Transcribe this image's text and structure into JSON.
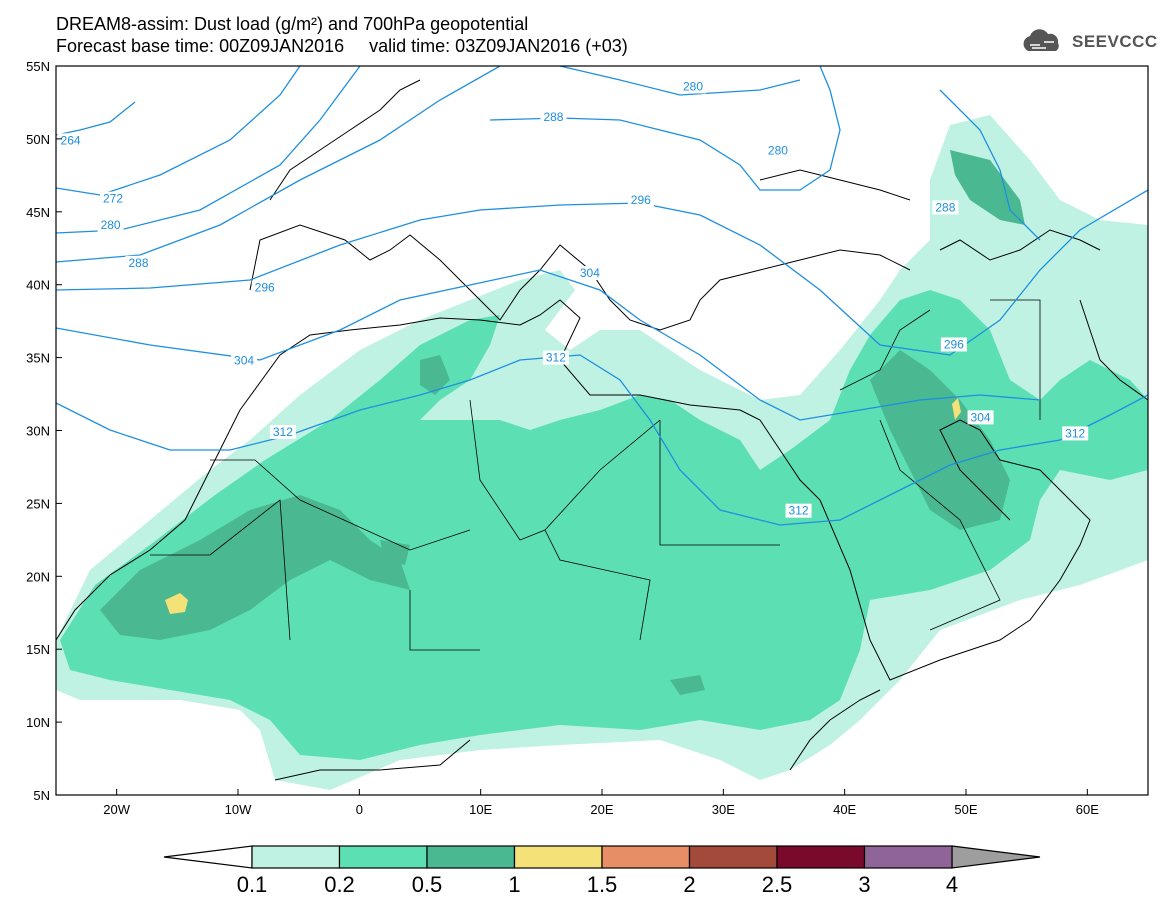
{
  "header": {
    "title_line1": "DREAM8-assim: Dust load (g/m²) and 700hPa geopotential",
    "title_line2": "Forecast base time: 00Z09JAN2016     valid time: 03Z09JAN2016 (+03)",
    "logo_text": "SEEVCCC"
  },
  "map": {
    "lon_range": [
      -25,
      65
    ],
    "lat_range": [
      5,
      55
    ],
    "lat_ticks": [
      {
        "value": 55,
        "label": "55N"
      },
      {
        "value": 50,
        "label": "50N"
      },
      {
        "value": 45,
        "label": "45N"
      },
      {
        "value": 40,
        "label": "40N"
      },
      {
        "value": 35,
        "label": "35N"
      },
      {
        "value": 30,
        "label": "30N"
      },
      {
        "value": 25,
        "label": "25N"
      },
      {
        "value": 20,
        "label": "20N"
      },
      {
        "value": 15,
        "label": "15N"
      },
      {
        "value": 10,
        "label": "10N"
      },
      {
        "value": 5,
        "label": "5N"
      }
    ],
    "lon_ticks": [
      {
        "value": -20,
        "label": "20W"
      },
      {
        "value": -10,
        "label": "10W"
      },
      {
        "value": 0,
        "label": "0"
      },
      {
        "value": 10,
        "label": "10E"
      },
      {
        "value": 20,
        "label": "20E"
      },
      {
        "value": 30,
        "label": "30E"
      },
      {
        "value": 40,
        "label": "40E"
      },
      {
        "value": 50,
        "label": "50E"
      },
      {
        "value": 60,
        "label": "60E"
      }
    ],
    "contour_color": "#1e8fe0",
    "contour_labels": [
      {
        "text": "264",
        "lon": -23.8,
        "lat": 49.9
      },
      {
        "text": "272",
        "lon": -20.3,
        "lat": 45.9
      },
      {
        "text": "280",
        "lon": -20.5,
        "lat": 44.1
      },
      {
        "text": "288",
        "lon": -18.2,
        "lat": 41.5
      },
      {
        "text": "296",
        "lon": -7.8,
        "lat": 39.8
      },
      {
        "text": "304",
        "lon": -9.5,
        "lat": 34.8
      },
      {
        "text": "312",
        "lon": -6.3,
        "lat": 29.9
      },
      {
        "text": "312",
        "lon": 16.2,
        "lat": 35.0
      },
      {
        "text": "304",
        "lon": 19.0,
        "lat": 40.8
      },
      {
        "text": "296",
        "lon": 23.2,
        "lat": 45.8
      },
      {
        "text": "288",
        "lon": 16.0,
        "lat": 51.5
      },
      {
        "text": "280",
        "lon": 27.5,
        "lat": 53.6
      },
      {
        "text": "280",
        "lon": 34.5,
        "lat": 49.2
      },
      {
        "text": "288",
        "lon": 48.3,
        "lat": 45.3
      },
      {
        "text": "296",
        "lon": 49.0,
        "lat": 35.9
      },
      {
        "text": "304",
        "lon": 51.2,
        "lat": 30.9
      },
      {
        "text": "312",
        "lon": 59.0,
        "lat": 29.8
      },
      {
        "text": "312",
        "lon": 36.2,
        "lat": 24.5
      }
    ]
  },
  "colorbar": {
    "labels": [
      "0.1",
      "0.2",
      "0.5",
      "1",
      "1.5",
      "2",
      "2.5",
      "3",
      "4"
    ],
    "colors": [
      "#bff2e3",
      "#5ddfb4",
      "#4ab891",
      "#f4e279",
      "#e88e66",
      "#a44a3a",
      "#7a0a2c",
      "#8f6498"
    ]
  },
  "dust_legend": {
    "level_0_1_color": "#bff2e3",
    "level_0_2_color": "#5ddfb4",
    "level_0_5_color": "#4ab891",
    "level_1_color": "#f4e279"
  }
}
